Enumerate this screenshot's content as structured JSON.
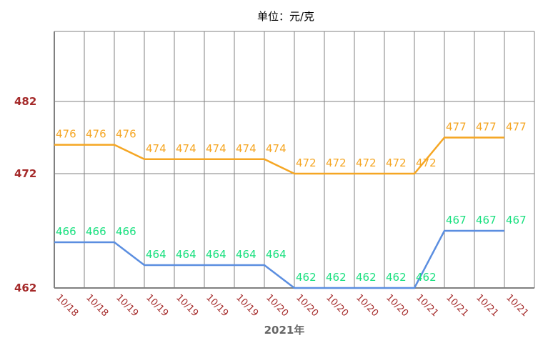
{
  "chart_data": {
    "type": "line",
    "title": "单位：元/克",
    "xlabel": "2021年",
    "ylabel": "",
    "ylim": [
      462,
      482
    ],
    "yticks": [
      462,
      472,
      482
    ],
    "categories": [
      "10/18",
      "10/18",
      "10/19",
      "10/19",
      "10/19",
      "10/19",
      "10/19",
      "10/20",
      "10/20",
      "10/20",
      "10/20",
      "10/20",
      "10/21",
      "10/21",
      "10/21",
      "10/21"
    ],
    "grid": true,
    "series": [
      {
        "line_color": "#f5a623",
        "label_color": "#f5a623",
        "values": [
          476,
          476,
          476,
          474,
          474,
          474,
          474,
          474,
          472,
          472,
          472,
          472,
          472,
          477,
          477,
          477
        ]
      },
      {
        "line_color": "#5b8ee0",
        "label_color": "#19e07f",
        "values": [
          466,
          466,
          466,
          464,
          464,
          464,
          464,
          464,
          462,
          462,
          462,
          462,
          462,
          467,
          467,
          467
        ]
      }
    ]
  }
}
